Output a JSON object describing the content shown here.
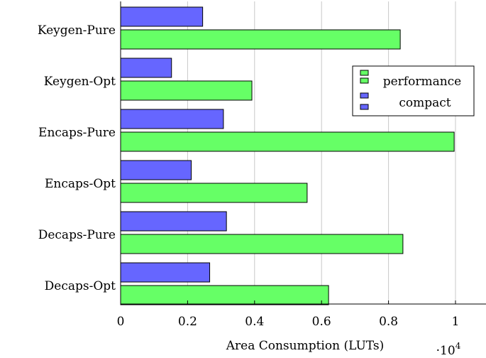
{
  "chart_data": {
    "type": "bar",
    "orientation": "horizontal",
    "categories": [
      "Keygen-Pure",
      "Keygen-Opt",
      "Encaps-Pure",
      "Encaps-Opt",
      "Decaps-Pure",
      "Decaps-Opt"
    ],
    "series": [
      {
        "name": "performance",
        "color": "#66ff66",
        "values": [
          8350,
          3920,
          9960,
          5570,
          8430,
          6210
        ]
      },
      {
        "name": "compact",
        "color": "#6666ff",
        "values": [
          2450,
          1520,
          3070,
          2110,
          3160,
          2660
        ]
      }
    ],
    "xlabel": "Area Consumption (LUTs)",
    "x_multiplier": "·10",
    "x_multiplier_exp": "4",
    "xticks": [
      "0",
      "0.2",
      "0.4",
      "0.6",
      "0.8",
      "1"
    ],
    "xlim": [
      0,
      10900
    ],
    "grid": "vertical",
    "legend_position": "top-right"
  }
}
